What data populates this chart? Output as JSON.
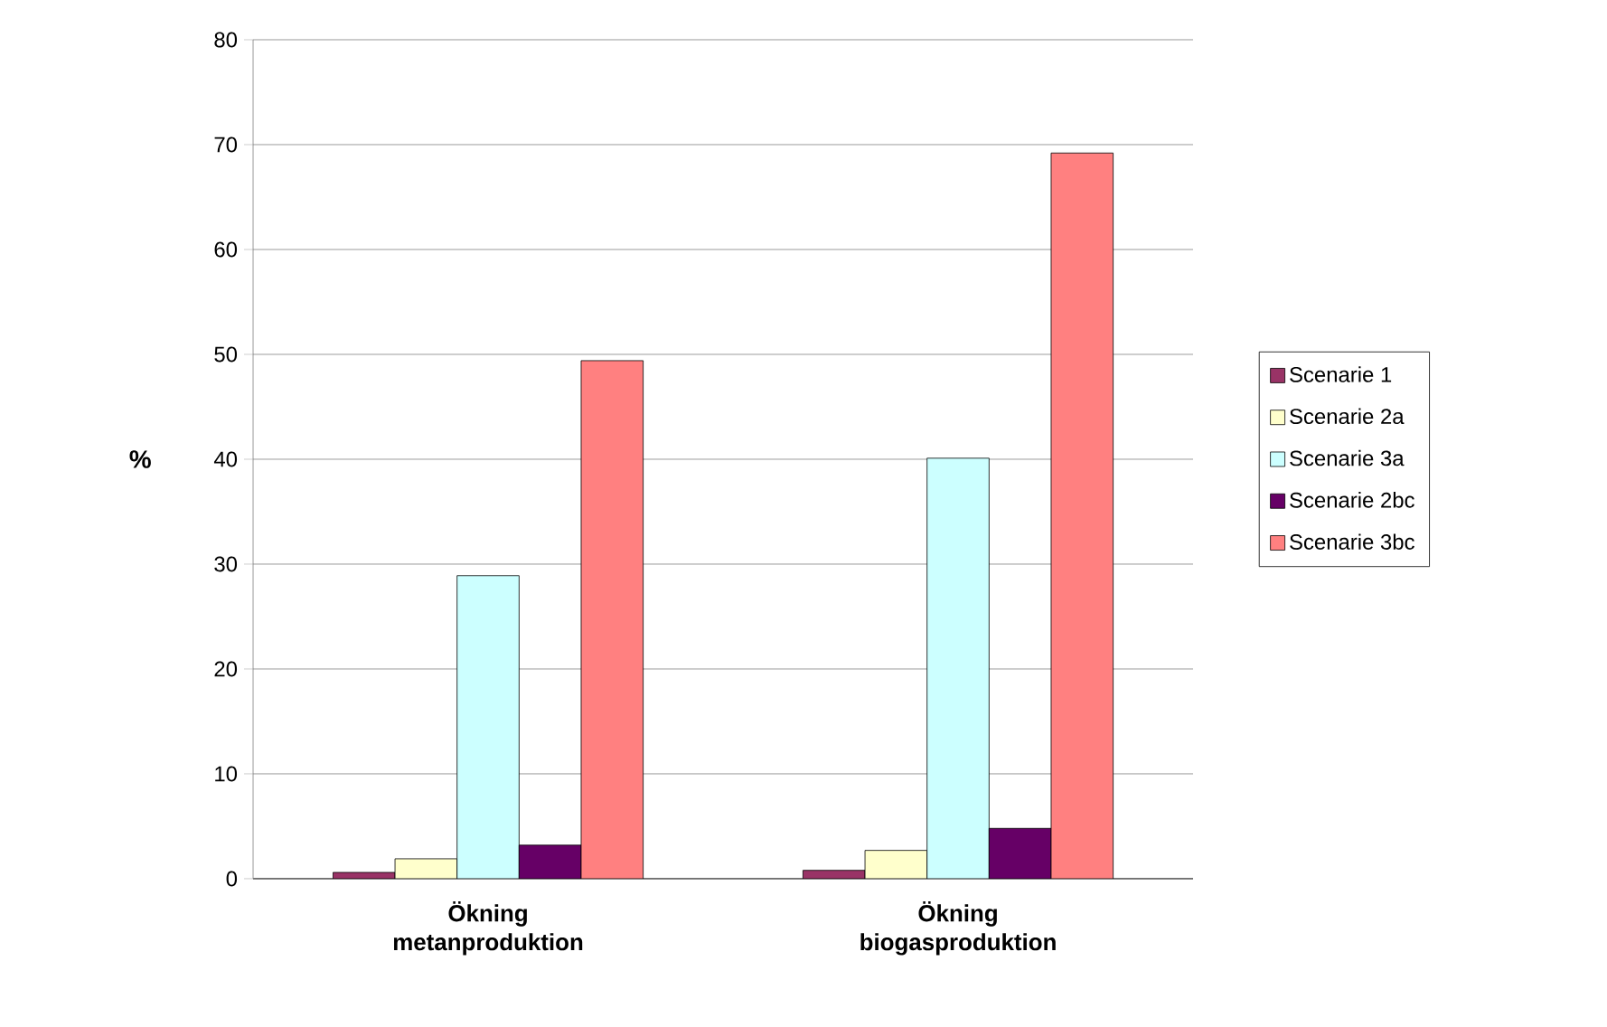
{
  "chart_data": {
    "type": "bar",
    "ylabel": "%",
    "categories": [
      "Ökning metanproduktion",
      "Ökning biogasproduktion"
    ],
    "series": [
      {
        "name": "Scenarie 1",
        "color": "#993366",
        "values": [
          0.6,
          0.8
        ]
      },
      {
        "name": "Scenarie 2a",
        "color": "#ffffcc",
        "values": [
          1.9,
          2.7
        ]
      },
      {
        "name": "Scenarie 3a",
        "color": "#ccffff",
        "values": [
          28.9,
          40.1
        ]
      },
      {
        "name": "Scenarie 2bc",
        "color": "#660066",
        "values": [
          3.2,
          4.8
        ]
      },
      {
        "name": "Scenarie 3bc",
        "color": "#ff8080",
        "values": [
          49.4,
          69.2
        ]
      }
    ],
    "ylim": [
      0,
      80
    ],
    "yticks": [
      0,
      10,
      20,
      30,
      40,
      50,
      60,
      70,
      80
    ],
    "grid": "y",
    "legend": "right"
  }
}
